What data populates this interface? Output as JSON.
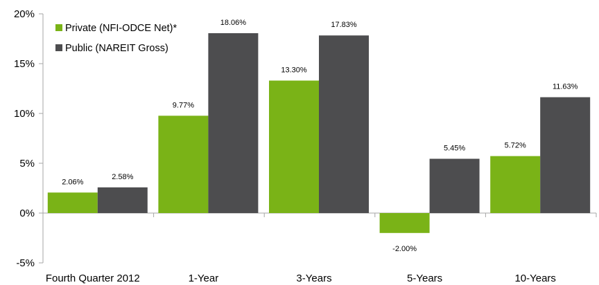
{
  "chart_data": {
    "type": "bar",
    "categories": [
      "Fourth Quarter 2012",
      "1-Year",
      "3-Years",
      "5-Years",
      "10-Years"
    ],
    "series": [
      {
        "name": "Private (NFI-ODCE Net)*",
        "color": "#7ab317",
        "values": [
          2.06,
          9.77,
          13.3,
          -2.0,
          5.72
        ],
        "labels": [
          "2.06%",
          "9.77%",
          "13.30%",
          "-2.00%",
          "5.72%"
        ]
      },
      {
        "name": "Public (NAREIT Gross)",
        "color": "#4d4d4f",
        "values": [
          2.58,
          18.06,
          17.83,
          5.45,
          11.63
        ],
        "labels": [
          "2.58%",
          "18.06%",
          "17.83%",
          "5.45%",
          "11.63%"
        ]
      }
    ],
    "ylim": [
      -5,
      20
    ],
    "yticks": [
      -5,
      0,
      5,
      10,
      15,
      20
    ],
    "ytick_labels": [
      "-5%",
      "0%",
      "5%",
      "10%",
      "15%",
      "20%"
    ],
    "grid": false,
    "legend": "top-left",
    "axis_color": "#a6a6a6"
  }
}
